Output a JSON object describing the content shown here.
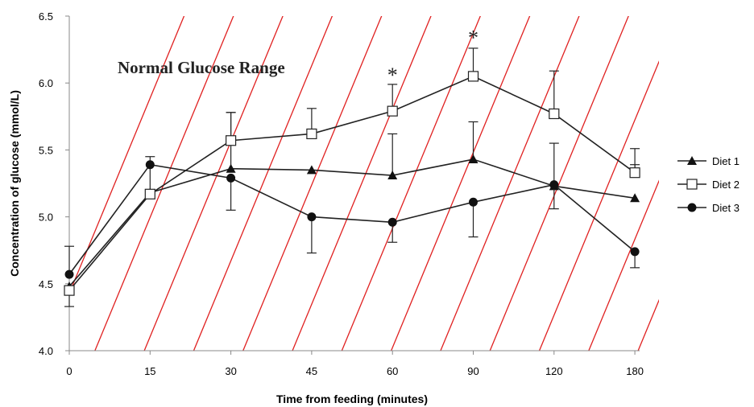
{
  "chart_data": {
    "type": "line",
    "title": "",
    "xlabel": "Time from feeding (minutes)",
    "ylabel": "Concentration  of glucose (mmol/L)",
    "categories": [
      "0",
      "15",
      "30",
      "45",
      "60",
      "90",
      "120",
      "180"
    ],
    "ylim": [
      4.0,
      6.5
    ],
    "yticks": [
      "4.0",
      "4.5",
      "5.0",
      "5.5",
      "6.0",
      "6.5"
    ],
    "grid": false,
    "legend_position": "right",
    "shaded_region": {
      "label": "Normal Glucose Range",
      "pattern": "diagonal hatch",
      "color": "#e02020"
    },
    "series": [
      {
        "name": "Diet 1",
        "marker": "triangle",
        "values": [
          4.48,
          5.18,
          5.36,
          5.35,
          5.31,
          5.43,
          5.23,
          5.14
        ],
        "error_upper": [
          null,
          5.45,
          5.78,
          null,
          5.62,
          5.71,
          null,
          null
        ],
        "error_lower": [
          null,
          null,
          null,
          null,
          null,
          null,
          null,
          null
        ]
      },
      {
        "name": "Diet 2",
        "marker": "open-square",
        "values": [
          4.45,
          5.17,
          5.57,
          5.62,
          5.79,
          6.05,
          5.77,
          5.33
        ],
        "error_upper": [
          null,
          null,
          5.78,
          5.81,
          5.99,
          6.26,
          6.09,
          5.51
        ],
        "error_lower": [
          4.33,
          null,
          null,
          null,
          null,
          null,
          null,
          5.39
        ]
      },
      {
        "name": "Diet 3",
        "marker": "filled-circle",
        "values": [
          4.57,
          5.39,
          5.29,
          5.0,
          4.96,
          5.11,
          5.24,
          4.74
        ],
        "error_upper": [
          4.78,
          null,
          null,
          null,
          null,
          null,
          5.55,
          null
        ],
        "error_lower": [
          null,
          null,
          5.05,
          4.73,
          4.81,
          4.85,
          5.06,
          4.62
        ]
      }
    ],
    "annotations": [
      {
        "text": "*",
        "category": "60",
        "y": 6.08
      },
      {
        "text": "*",
        "category": "90",
        "y": 6.36
      }
    ],
    "colors": {
      "series_line": "#222222",
      "hatch": "#e02020",
      "axis": "#888888"
    }
  }
}
